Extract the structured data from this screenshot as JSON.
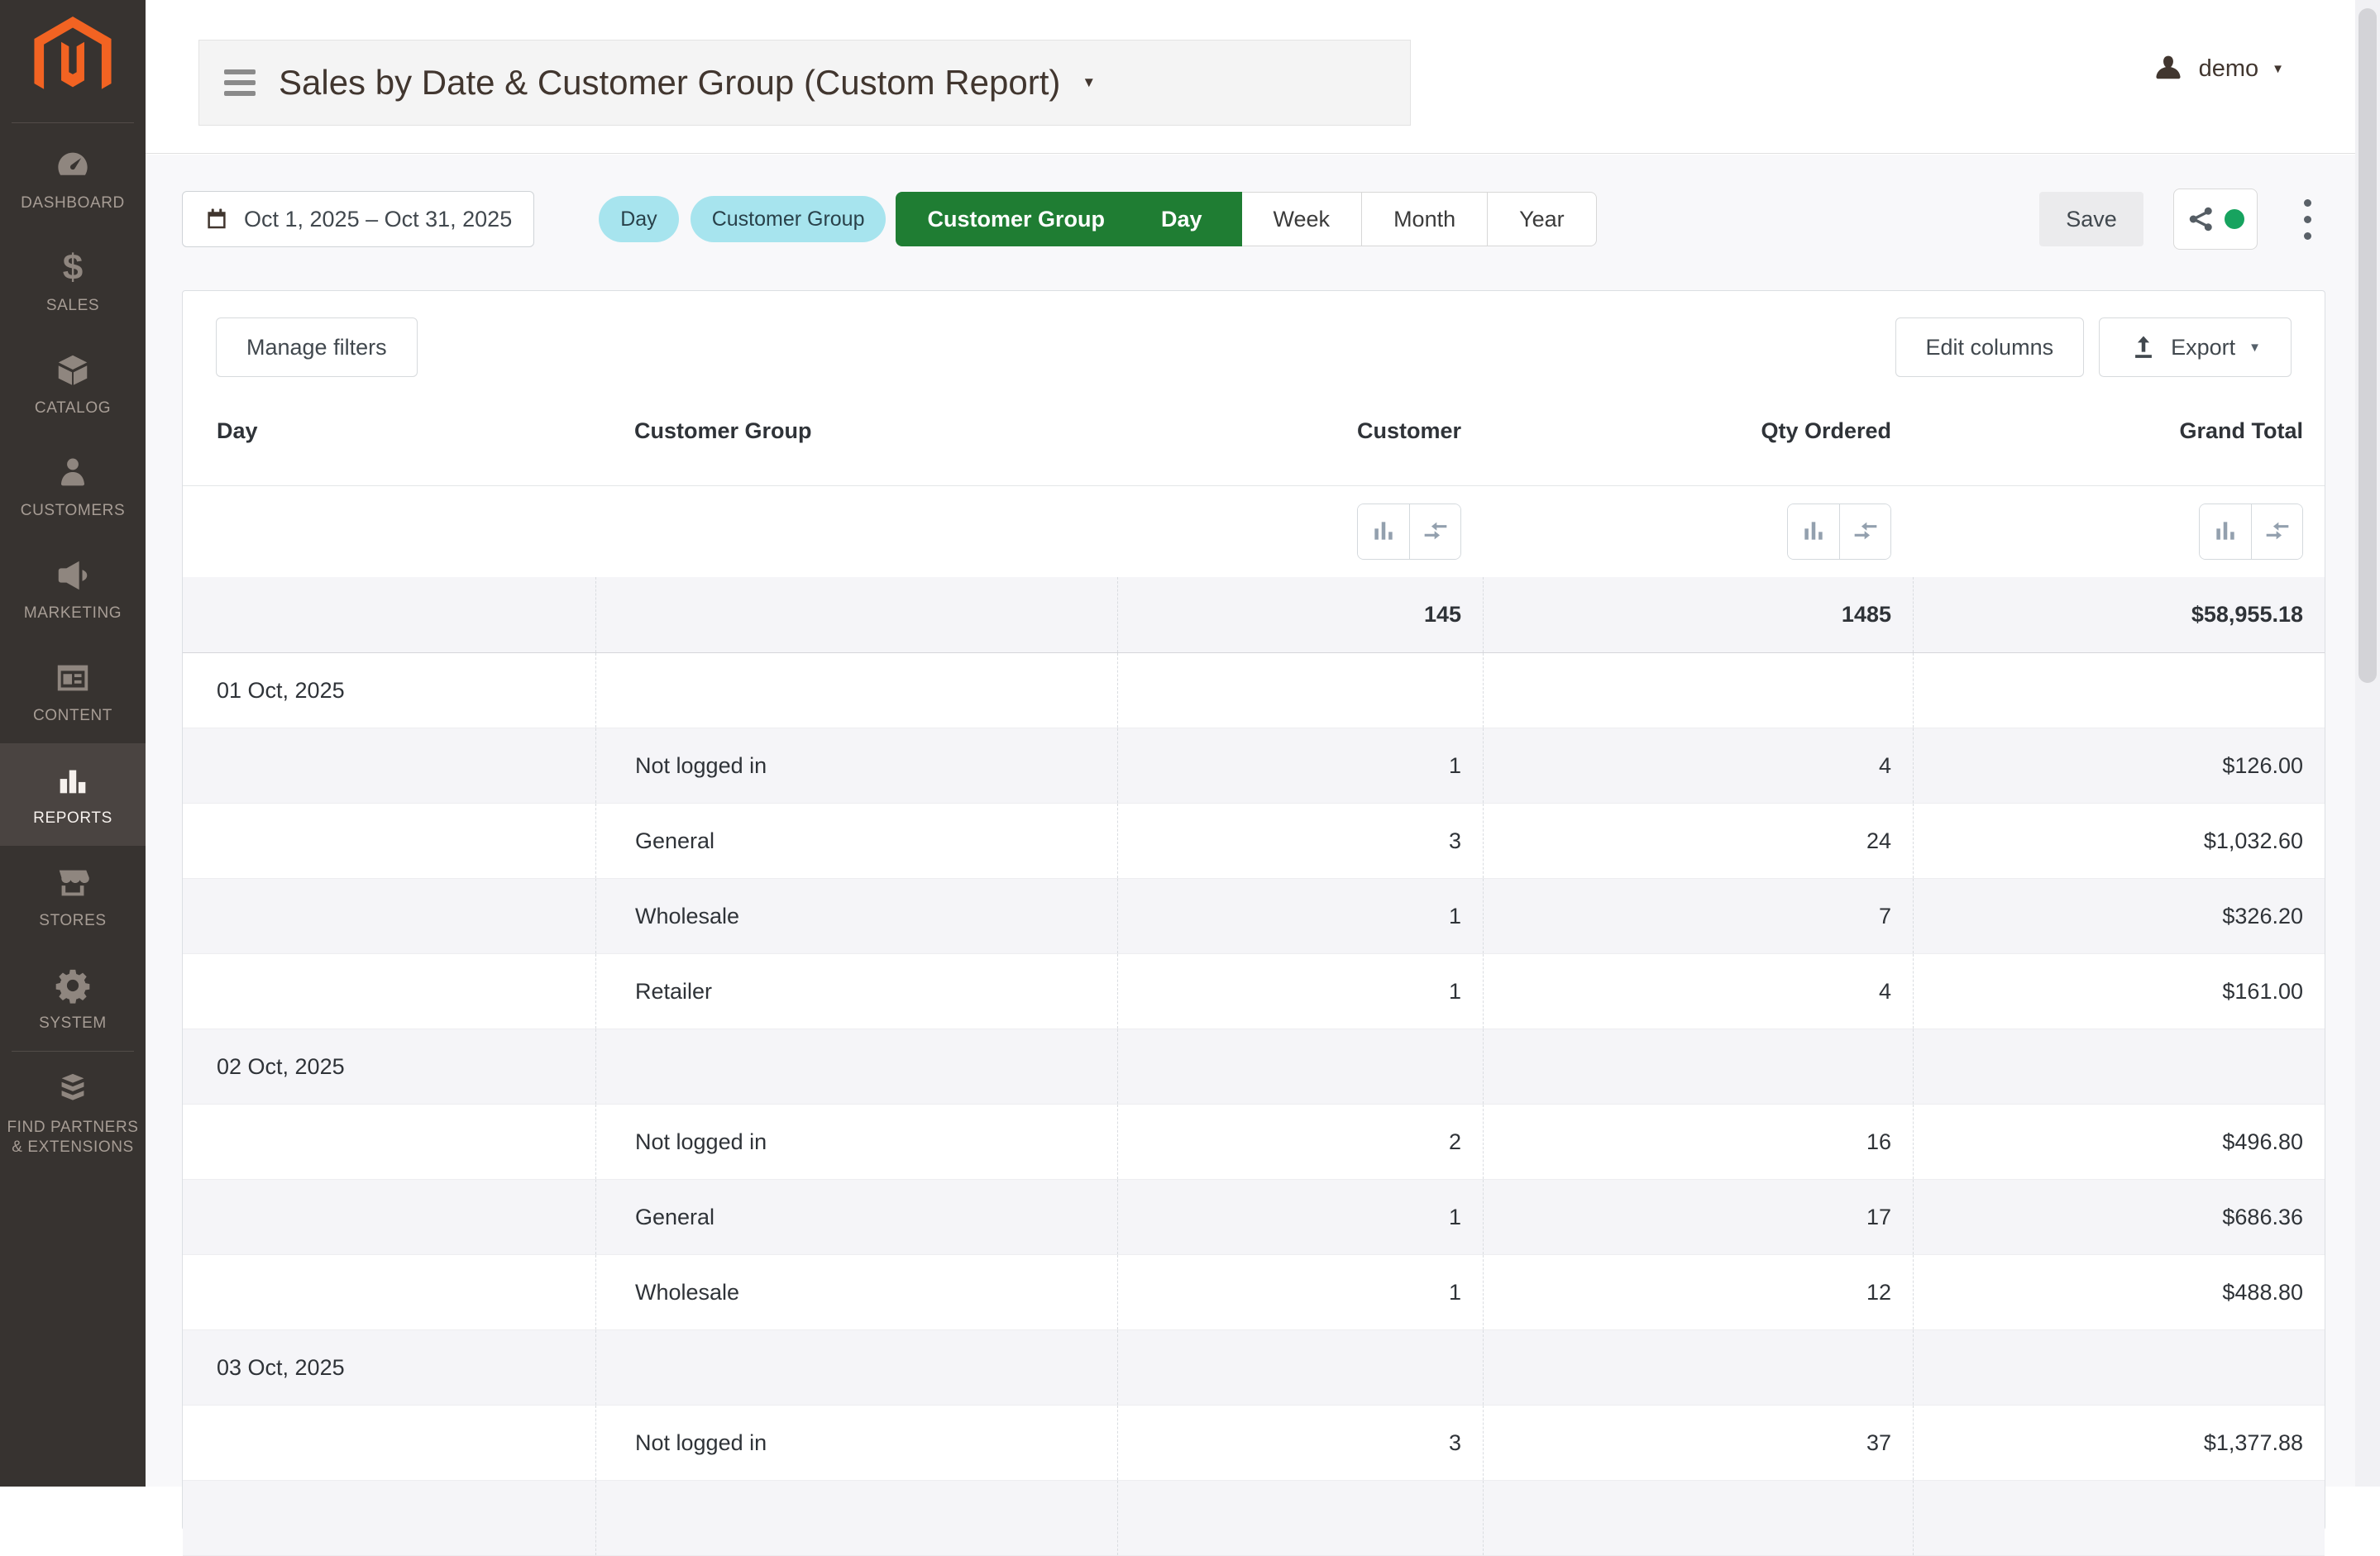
{
  "colors": {
    "accent_green": "#1f7d33",
    "tag_cyan": "#a7e4ee",
    "logo_orange": "#f26322",
    "status_dot_green": "#17a35f",
    "sidebar_bg": "#373330",
    "sidebar_active_bg": "#4a4441"
  },
  "sidebar": {
    "items": [
      {
        "label": "DASHBOARD",
        "icon": "dashboard-icon",
        "active": false
      },
      {
        "label": "SALES",
        "icon": "sales-icon",
        "active": false
      },
      {
        "label": "CATALOG",
        "icon": "catalog-icon",
        "active": false
      },
      {
        "label": "CUSTOMERS",
        "icon": "customers-icon",
        "active": false
      },
      {
        "label": "MARKETING",
        "icon": "marketing-icon",
        "active": false
      },
      {
        "label": "CONTENT",
        "icon": "content-icon",
        "active": false
      },
      {
        "label": "REPORTS",
        "icon": "reports-icon",
        "active": true
      },
      {
        "label": "STORES",
        "icon": "stores-icon",
        "active": false
      },
      {
        "label": "SYSTEM",
        "icon": "system-icon",
        "active": false
      },
      {
        "label": "FIND PARTNERS & EXTENSIONS",
        "icon": "find-partners-icon",
        "active": false,
        "divider_before": true,
        "tall": true
      }
    ]
  },
  "header": {
    "title": "Sales by Date & Customer Group (Custom Report)",
    "user": "demo"
  },
  "toolbar": {
    "date_range": "Oct 1, 2025 – Oct 31, 2025",
    "dimension_tags": [
      "Day",
      "Customer Group"
    ],
    "period_buttons": [
      {
        "label": "Customer Group",
        "active": true
      },
      {
        "label": "Day",
        "active": true
      },
      {
        "label": "Week",
        "active": false
      },
      {
        "label": "Month",
        "active": false
      },
      {
        "label": "Year",
        "active": false
      }
    ],
    "save_label": "Save"
  },
  "table_toolbar": {
    "manage_filters_label": "Manage filters",
    "edit_columns_label": "Edit columns",
    "export_label": "Export"
  },
  "table": {
    "columns": [
      "Day",
      "Customer Group",
      "Customer",
      "Qty Ordered",
      "Grand Total"
    ],
    "column_tool_icons": [
      "bar-chart-icon",
      "collapse-arrows-icon"
    ],
    "totals": {
      "customer": "145",
      "qty_ordered": "1485",
      "grand_total": "$58,955.18"
    },
    "rows": [
      {
        "type": "date",
        "day": "01 Oct, 2025"
      },
      {
        "type": "data",
        "customer_group": "Not logged in",
        "customer": "1",
        "qty_ordered": "4",
        "grand_total": "$126.00"
      },
      {
        "type": "data",
        "customer_group": "General",
        "customer": "3",
        "qty_ordered": "24",
        "grand_total": "$1,032.60"
      },
      {
        "type": "data",
        "customer_group": "Wholesale",
        "customer": "1",
        "qty_ordered": "7",
        "grand_total": "$326.20"
      },
      {
        "type": "data",
        "customer_group": "Retailer",
        "customer": "1",
        "qty_ordered": "4",
        "grand_total": "$161.00"
      },
      {
        "type": "date",
        "day": "02 Oct, 2025"
      },
      {
        "type": "data",
        "customer_group": "Not logged in",
        "customer": "2",
        "qty_ordered": "16",
        "grand_total": "$496.80"
      },
      {
        "type": "data",
        "customer_group": "General",
        "customer": "1",
        "qty_ordered": "17",
        "grand_total": "$686.36"
      },
      {
        "type": "data",
        "customer_group": "Wholesale",
        "customer": "1",
        "qty_ordered": "12",
        "grand_total": "$488.80"
      },
      {
        "type": "date",
        "day": "03 Oct, 2025"
      },
      {
        "type": "data",
        "customer_group": "Not logged in",
        "customer": "3",
        "qty_ordered": "37",
        "grand_total": "$1,377.88"
      },
      {
        "type": "empty"
      }
    ]
  }
}
